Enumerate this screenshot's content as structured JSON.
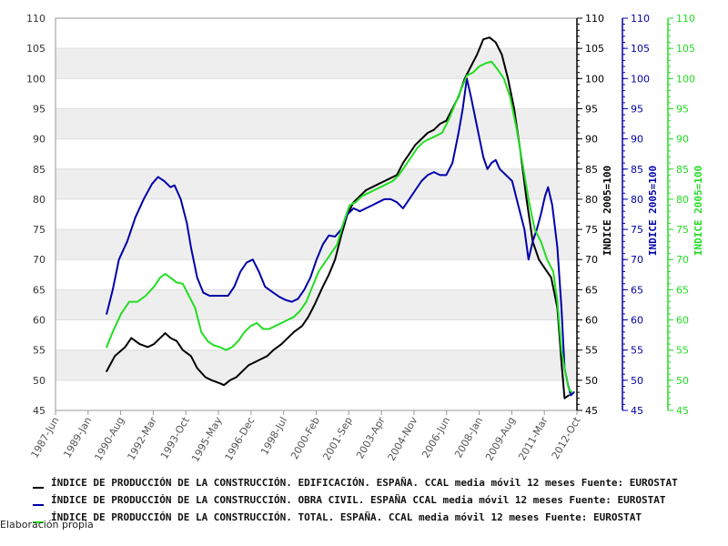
{
  "chart_data": {
    "type": "line",
    "ylim": [
      45,
      110
    ],
    "yticks": [
      45,
      50,
      55,
      60,
      65,
      70,
      75,
      80,
      85,
      90,
      95,
      100,
      105,
      110
    ],
    "xlim": [
      1987.417,
      2012.75
    ],
    "xticks": [
      {
        "label": "1987-Jun",
        "value": 1987.417
      },
      {
        "label": "1989-Jan",
        "value": 1989.0
      },
      {
        "label": "1990-Aug",
        "value": 1990.583
      },
      {
        "label": "1992-Mar",
        "value": 1992.167
      },
      {
        "label": "1993-Oct",
        "value": 1993.75
      },
      {
        "label": "1995-May",
        "value": 1995.333
      },
      {
        "label": "1996-Dec",
        "value": 1996.917
      },
      {
        "label": "1998-Jul",
        "value": 1998.5
      },
      {
        "label": "2000-Feb",
        "value": 2000.083
      },
      {
        "label": "2001-Sep",
        "value": 2001.667
      },
      {
        "label": "2003-Apr",
        "value": 2003.25
      },
      {
        "label": "2004-Nov",
        "value": 2004.833
      },
      {
        "label": "2006-Jun",
        "value": 2006.417
      },
      {
        "label": "2008-Jan",
        "value": 2008.0
      },
      {
        "label": "2009-Aug",
        "value": 2009.583
      },
      {
        "label": "2011-Mar",
        "value": 2011.167
      },
      {
        "label": "2012-Oct",
        "value": 2012.75
      }
    ],
    "grid": "horizontal bands",
    "right_axes": [
      {
        "title": "INDICE 2005=100",
        "color": "#000000"
      },
      {
        "title": "INDICE 2005=100",
        "color": "#0000aa"
      },
      {
        "title": "INDICE 2005=100",
        "color": "#22dd22"
      }
    ],
    "series": [
      {
        "name": "ÍNDICE DE PRODUCCIÓN DE LA CONSTRUCCIÓN. EDIFICACIÓN. ESPAÑA. CCAL media móvil 12 meses  Fuente: EUROSTAT",
        "color": "#000000",
        "points": [
          [
            1989.9,
            51.5
          ],
          [
            1990.3,
            54
          ],
          [
            1990.8,
            55.5
          ],
          [
            1991.1,
            57
          ],
          [
            1991.5,
            56
          ],
          [
            1991.9,
            55.5
          ],
          [
            1992.2,
            56
          ],
          [
            1992.5,
            57
          ],
          [
            1992.75,
            57.8
          ],
          [
            1993.0,
            57
          ],
          [
            1993.3,
            56.5
          ],
          [
            1993.6,
            55
          ],
          [
            1994.0,
            54
          ],
          [
            1994.3,
            52
          ],
          [
            1994.7,
            50.5
          ],
          [
            1995.0,
            50
          ],
          [
            1995.4,
            49.5
          ],
          [
            1995.6,
            49.2
          ],
          [
            1995.9,
            50
          ],
          [
            1996.2,
            50.5
          ],
          [
            1996.5,
            51.5
          ],
          [
            1996.8,
            52.5
          ],
          [
            1997.1,
            53
          ],
          [
            1997.4,
            53.5
          ],
          [
            1997.7,
            54
          ],
          [
            1998.0,
            55
          ],
          [
            1998.4,
            56
          ],
          [
            1998.7,
            57
          ],
          [
            1999.0,
            58
          ],
          [
            1999.4,
            59
          ],
          [
            1999.7,
            60.5
          ],
          [
            2000.0,
            62.5
          ],
          [
            2000.4,
            65.5
          ],
          [
            2000.7,
            67.5
          ],
          [
            2001.0,
            70
          ],
          [
            2001.3,
            74
          ],
          [
            2001.6,
            77.5
          ],
          [
            2001.9,
            79.5
          ],
          [
            2002.2,
            80.5
          ],
          [
            2002.5,
            81.5
          ],
          [
            2002.8,
            82
          ],
          [
            2003.1,
            82.5
          ],
          [
            2003.4,
            83
          ],
          [
            2003.7,
            83.5
          ],
          [
            2004.0,
            84
          ],
          [
            2004.3,
            86
          ],
          [
            2004.6,
            87.5
          ],
          [
            2004.9,
            89
          ],
          [
            2005.2,
            90
          ],
          [
            2005.5,
            91
          ],
          [
            2005.8,
            91.5
          ],
          [
            2006.1,
            92.5
          ],
          [
            2006.4,
            93
          ],
          [
            2006.7,
            95
          ],
          [
            2007.0,
            97
          ],
          [
            2007.3,
            100
          ],
          [
            2007.6,
            102
          ],
          [
            2007.9,
            104
          ],
          [
            2008.2,
            106.5
          ],
          [
            2008.5,
            106.8
          ],
          [
            2008.8,
            106
          ],
          [
            2009.1,
            104
          ],
          [
            2009.4,
            100
          ],
          [
            2009.7,
            95
          ],
          [
            2010.0,
            88
          ],
          [
            2010.3,
            80
          ],
          [
            2010.6,
            73
          ],
          [
            2010.9,
            70
          ],
          [
            2011.2,
            68.5
          ],
          [
            2011.5,
            67
          ],
          [
            2011.8,
            62
          ],
          [
            2012.0,
            53
          ],
          [
            2012.15,
            47
          ],
          [
            2012.35,
            47.5
          ]
        ]
      },
      {
        "name": "ÍNDICE DE PRODUCCIÓN DE LA CONSTRUCCIÓN. OBRA CIVIL. ESPAÑA CCAL media móvil 12 meses  Fuente: EUROSTAT",
        "color": "#0000aa",
        "points": [
          [
            1989.9,
            61
          ],
          [
            1990.2,
            65
          ],
          [
            1990.5,
            70
          ],
          [
            1990.9,
            73
          ],
          [
            1991.3,
            77
          ],
          [
            1991.7,
            80
          ],
          [
            1992.1,
            82.5
          ],
          [
            1992.4,
            83.7
          ],
          [
            1992.7,
            83
          ],
          [
            1993.0,
            82
          ],
          [
            1993.2,
            82.3
          ],
          [
            1993.5,
            80
          ],
          [
            1993.8,
            76
          ],
          [
            1994.0,
            72
          ],
          [
            1994.3,
            67
          ],
          [
            1994.6,
            64.5
          ],
          [
            1994.9,
            64
          ],
          [
            1995.2,
            64
          ],
          [
            1995.5,
            64
          ],
          [
            1995.8,
            64
          ],
          [
            1996.1,
            65.5
          ],
          [
            1996.4,
            68
          ],
          [
            1996.7,
            69.5
          ],
          [
            1997.0,
            70
          ],
          [
            1997.3,
            68
          ],
          [
            1997.6,
            65.5
          ],
          [
            1998.0,
            64.5
          ],
          [
            1998.3,
            63.8
          ],
          [
            1998.6,
            63.3
          ],
          [
            1998.9,
            63
          ],
          [
            1999.2,
            63.5
          ],
          [
            1999.5,
            65
          ],
          [
            1999.8,
            67
          ],
          [
            2000.1,
            70
          ],
          [
            2000.4,
            72.5
          ],
          [
            2000.7,
            74
          ],
          [
            2001.0,
            73.8
          ],
          [
            2001.3,
            75
          ],
          [
            2001.6,
            77.5
          ],
          [
            2001.9,
            78.5
          ],
          [
            2002.2,
            78
          ],
          [
            2002.5,
            78.5
          ],
          [
            2002.8,
            79
          ],
          [
            2003.1,
            79.5
          ],
          [
            2003.4,
            80
          ],
          [
            2003.7,
            80
          ],
          [
            2004.0,
            79.5
          ],
          [
            2004.3,
            78.5
          ],
          [
            2004.6,
            80
          ],
          [
            2004.9,
            81.5
          ],
          [
            2005.2,
            83
          ],
          [
            2005.5,
            84
          ],
          [
            2005.8,
            84.5
          ],
          [
            2006.1,
            84
          ],
          [
            2006.4,
            84
          ],
          [
            2006.7,
            86
          ],
          [
            2007.0,
            91
          ],
          [
            2007.2,
            95
          ],
          [
            2007.4,
            100
          ],
          [
            2007.6,
            97
          ],
          [
            2007.9,
            92
          ],
          [
            2008.2,
            87
          ],
          [
            2008.4,
            85
          ],
          [
            2008.6,
            86
          ],
          [
            2008.8,
            86.5
          ],
          [
            2009.0,
            85
          ],
          [
            2009.3,
            84
          ],
          [
            2009.6,
            83
          ],
          [
            2009.9,
            79
          ],
          [
            2010.2,
            75
          ],
          [
            2010.4,
            70
          ],
          [
            2010.6,
            73
          ],
          [
            2010.8,
            75
          ],
          [
            2011.0,
            77.5
          ],
          [
            2011.2,
            80.5
          ],
          [
            2011.35,
            82
          ],
          [
            2011.55,
            79
          ],
          [
            2011.8,
            72
          ],
          [
            2012.0,
            62
          ],
          [
            2012.15,
            52
          ],
          [
            2012.3,
            49.5
          ],
          [
            2012.45,
            47.5
          ],
          [
            2012.6,
            48
          ]
        ]
      },
      {
        "name": "ÍNDICE DE PRODUCCIÓN DE LA CONSTRUCCIÓN. TOTAL. ESPAÑA. CCAL media móvil 12 meses  Fuente: EUROSTAT",
        "color": "#22dd22",
        "points": [
          [
            1989.9,
            55.5
          ],
          [
            1990.2,
            58
          ],
          [
            1990.6,
            61
          ],
          [
            1991.0,
            63
          ],
          [
            1991.4,
            63
          ],
          [
            1991.8,
            64
          ],
          [
            1992.2,
            65.5
          ],
          [
            1992.5,
            67
          ],
          [
            1992.75,
            67.6
          ],
          [
            1993.0,
            67
          ],
          [
            1993.3,
            66.2
          ],
          [
            1993.6,
            66
          ],
          [
            1993.9,
            64
          ],
          [
            1994.2,
            62
          ],
          [
            1994.5,
            58
          ],
          [
            1994.8,
            56.5
          ],
          [
            1995.1,
            55.8
          ],
          [
            1995.4,
            55.5
          ],
          [
            1995.7,
            55
          ],
          [
            1996.0,
            55.5
          ],
          [
            1996.3,
            56.5
          ],
          [
            1996.6,
            58
          ],
          [
            1996.9,
            59
          ],
          [
            1997.2,
            59.5
          ],
          [
            1997.5,
            58.5
          ],
          [
            1997.8,
            58.5
          ],
          [
            1998.1,
            59
          ],
          [
            1998.4,
            59.5
          ],
          [
            1998.7,
            60
          ],
          [
            1999.0,
            60.5
          ],
          [
            1999.3,
            61.5
          ],
          [
            1999.6,
            63
          ],
          [
            1999.9,
            65.5
          ],
          [
            2000.2,
            68
          ],
          [
            2000.5,
            69.5
          ],
          [
            2000.8,
            71
          ],
          [
            2001.1,
            72.5
          ],
          [
            2001.4,
            76
          ],
          [
            2001.7,
            79
          ],
          [
            2002.0,
            79.5
          ],
          [
            2002.3,
            80.5
          ],
          [
            2002.6,
            81
          ],
          [
            2002.9,
            81.5
          ],
          [
            2003.2,
            82
          ],
          [
            2003.5,
            82.5
          ],
          [
            2003.8,
            83
          ],
          [
            2004.1,
            84
          ],
          [
            2004.4,
            85.5
          ],
          [
            2004.7,
            87
          ],
          [
            2005.0,
            88.5
          ],
          [
            2005.3,
            89.5
          ],
          [
            2005.6,
            90
          ],
          [
            2005.9,
            90.5
          ],
          [
            2006.2,
            91
          ],
          [
            2006.5,
            93
          ],
          [
            2006.8,
            95.5
          ],
          [
            2007.1,
            98
          ],
          [
            2007.4,
            100.5
          ],
          [
            2007.7,
            101
          ],
          [
            2008.0,
            102
          ],
          [
            2008.3,
            102.5
          ],
          [
            2008.6,
            102.8
          ],
          [
            2008.9,
            101.5
          ],
          [
            2009.2,
            100
          ],
          [
            2009.5,
            97
          ],
          [
            2009.8,
            92
          ],
          [
            2010.1,
            86
          ],
          [
            2010.4,
            80
          ],
          [
            2010.7,
            75
          ],
          [
            2011.0,
            73
          ],
          [
            2011.3,
            70
          ],
          [
            2011.6,
            68
          ],
          [
            2011.8,
            63
          ],
          [
            2012.0,
            55
          ],
          [
            2012.2,
            51
          ],
          [
            2012.35,
            48.5
          ],
          [
            2012.5,
            48
          ]
        ]
      }
    ]
  },
  "legend": {
    "items": [
      {
        "label": "ÍNDICE DE PRODUCCIÓN DE LA CONSTRUCCIÓN. EDIFICACIÓN. ESPAÑA. CCAL media móvil 12 meses  Fuente: EUROSTAT",
        "color": "#000000"
      },
      {
        "label": "ÍNDICE DE PRODUCCIÓN DE LA CONSTRUCCIÓN. OBRA CIVIL. ESPAÑA CCAL media móvil 12 meses  Fuente: EUROSTAT",
        "color": "#0000aa"
      },
      {
        "label": "ÍNDICE DE PRODUCCIÓN DE LA CONSTRUCCIÓN. TOTAL. ESPAÑA. CCAL media móvil 12 meses  Fuente: EUROSTAT",
        "color": "#22dd22"
      }
    ]
  },
  "footer": {
    "note": "Elaboración propia"
  }
}
